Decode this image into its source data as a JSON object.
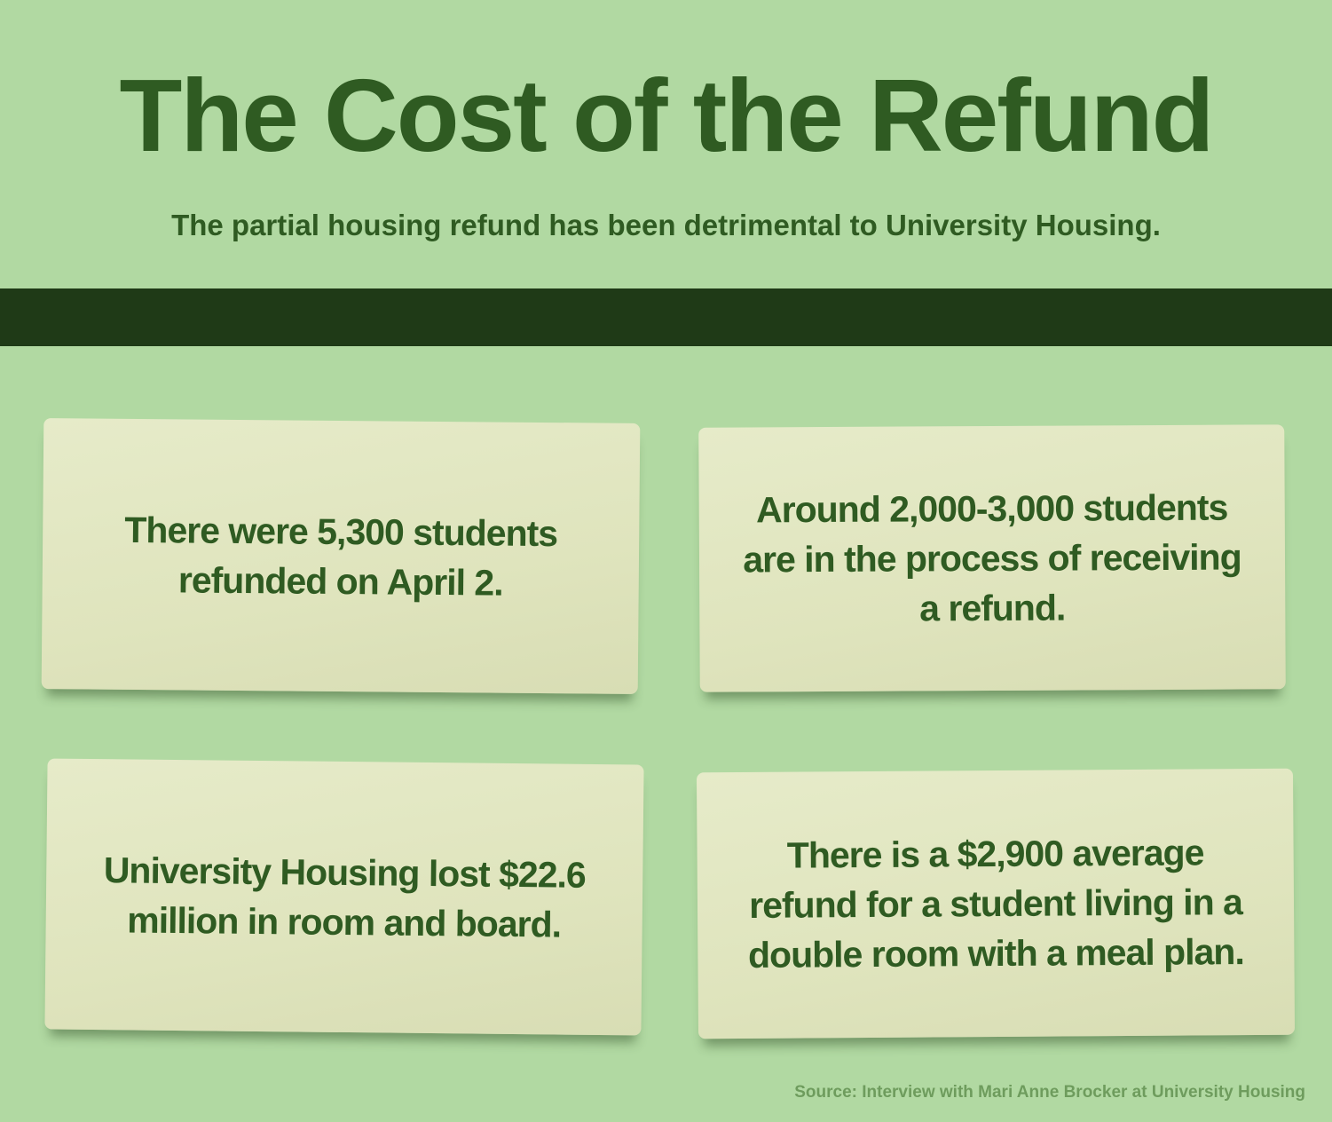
{
  "header": {
    "title": "The Cost of the Refund",
    "subtitle": "The partial housing refund has been detrimental to University Housing."
  },
  "cards": [
    {
      "text": "There were 5,300 students refunded on April 2."
    },
    {
      "text": "Around 2,000-3,000 students are in the process of receiving a refund."
    },
    {
      "text": "University Housing lost $22.6 million in room and board."
    },
    {
      "text": "There is a $2,900 average refund for a student living in a double room with a meal plan."
    }
  ],
  "footer": {
    "source": "Source: Interview with Mari Anne Brocker at University Housing"
  },
  "colors": {
    "background": "#b1d9a2",
    "text": "#2f5b22",
    "bar": "#1f3a17",
    "card": "#e3e8c4",
    "source": "#6e9c5d"
  }
}
